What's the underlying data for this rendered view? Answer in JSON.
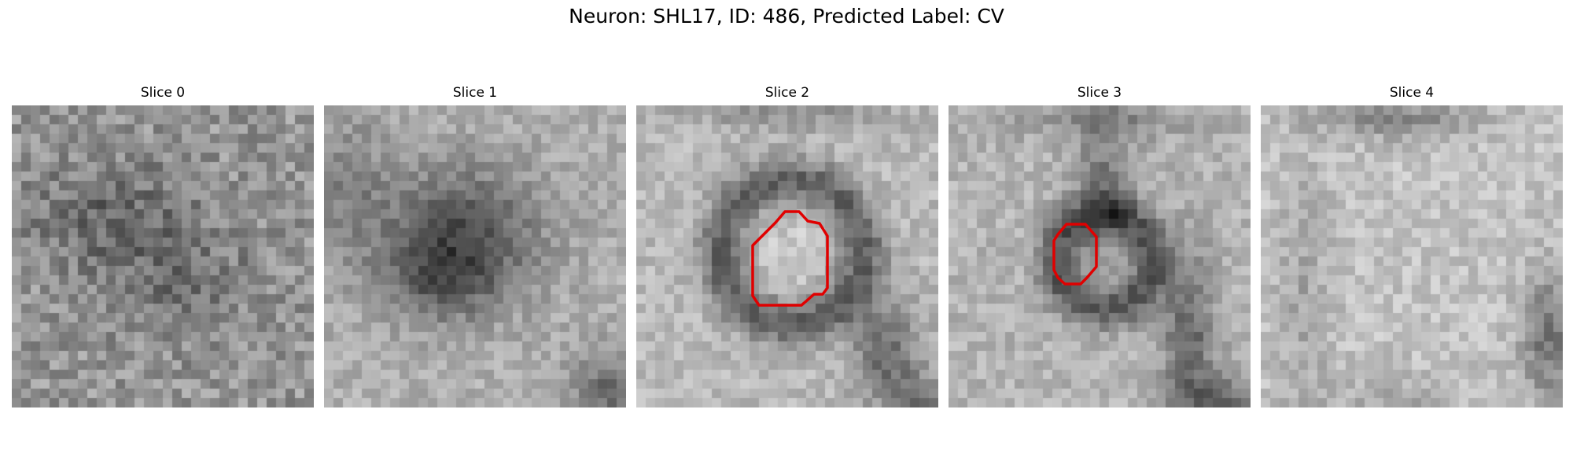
{
  "figure": {
    "title": "Neuron: SHL17, ID: 486, Predicted Label: CV"
  },
  "panels": [
    {
      "title": "Slice 0",
      "seed": 11,
      "pattern": "noise-dark-center",
      "has_contour": false
    },
    {
      "title": "Slice 1",
      "seed": 23,
      "pattern": "dark-blob",
      "has_contour": false
    },
    {
      "title": "Slice 2",
      "seed": 37,
      "pattern": "ring",
      "has_contour": true
    },
    {
      "title": "Slice 3",
      "seed": 51,
      "pattern": "ring-small",
      "has_contour": true
    },
    {
      "title": "Slice 4",
      "seed": 67,
      "pattern": "light",
      "has_contour": false
    }
  ],
  "contour_color": "#e00000"
}
